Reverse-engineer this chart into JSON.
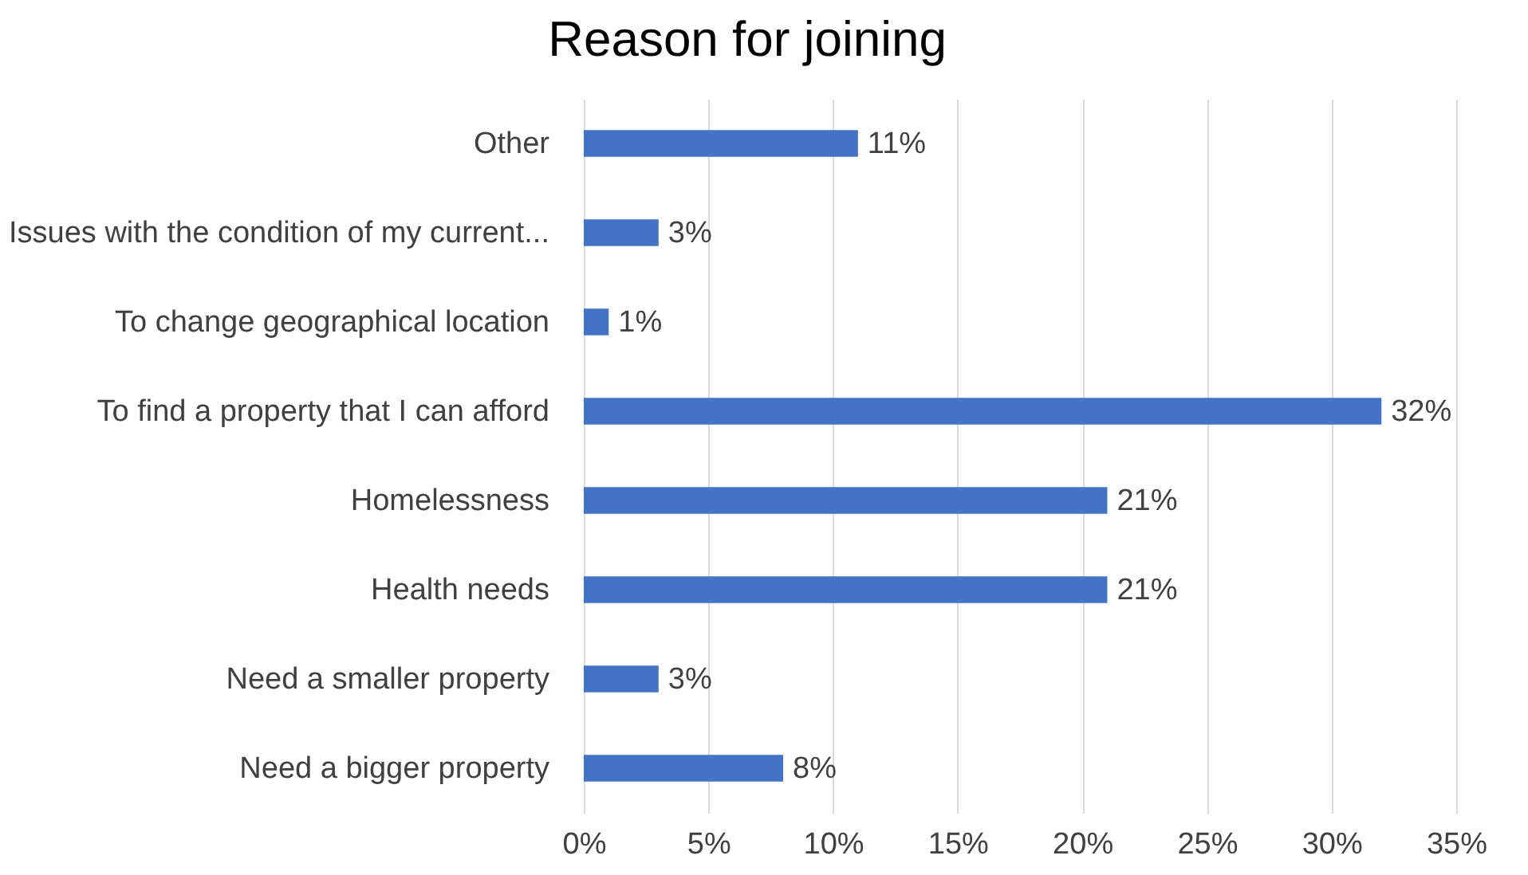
{
  "chart_data": {
    "type": "bar",
    "orientation": "horizontal",
    "title": "Reason for joining",
    "categories": [
      "Other",
      "Issues with the condition of my current...",
      "To change geographical location",
      "To find a property that I can afford",
      "Homelessness",
      "Health needs",
      "Need a smaller property",
      "Need a bigger property"
    ],
    "values": [
      11,
      3,
      1,
      32,
      21,
      21,
      3,
      8
    ],
    "value_labels": [
      "11%",
      "3%",
      "1%",
      "32%",
      "21%",
      "21%",
      "3%",
      "8%"
    ],
    "color": "#4472c4",
    "xlim": [
      0,
      35
    ],
    "xticks": [
      {
        "value": 0,
        "label": "0%"
      },
      {
        "value": 5,
        "label": "5%"
      },
      {
        "value": 10,
        "label": "10%"
      },
      {
        "value": 15,
        "label": "15%"
      },
      {
        "value": 20,
        "label": "20%"
      },
      {
        "value": 25,
        "label": "25%"
      },
      {
        "value": 30,
        "label": "30%"
      },
      {
        "value": 35,
        "label": "35%"
      }
    ],
    "grid": "x"
  }
}
